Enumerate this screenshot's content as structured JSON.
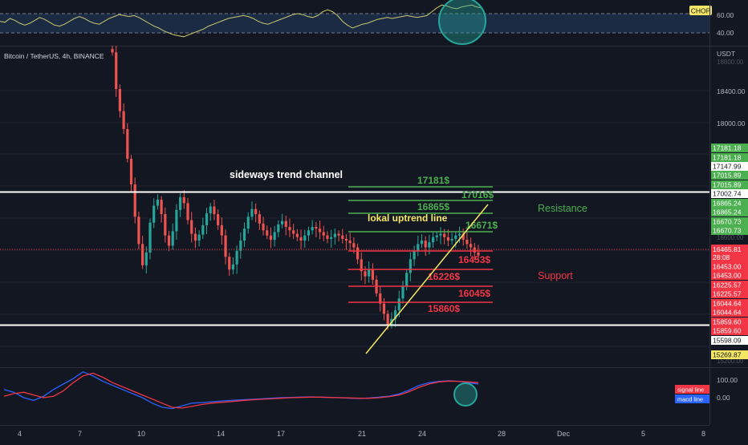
{
  "chop_panel": {
    "badge": "CHOP",
    "levels": [
      {
        "value": "60.00"
      },
      {
        "value": "40.00"
      }
    ],
    "series": [
      52,
      51,
      55,
      53,
      50,
      48,
      50,
      53,
      56,
      54,
      51,
      48,
      47,
      49,
      52,
      55,
      57,
      55,
      52,
      50,
      49,
      52,
      55,
      57,
      59,
      58,
      57,
      58,
      56,
      53,
      50,
      47,
      45,
      42,
      40,
      38,
      37,
      36,
      38,
      40,
      42,
      44,
      47,
      49,
      51,
      53,
      55,
      56,
      57,
      58,
      57,
      55,
      52,
      50,
      49,
      51,
      53,
      55,
      57,
      59,
      60,
      59,
      57,
      56,
      58,
      62,
      64,
      62,
      58,
      52,
      48,
      45,
      47,
      49,
      50,
      52,
      54,
      55,
      56,
      55,
      56,
      57,
      58,
      57,
      56,
      57,
      58,
      62,
      66,
      69,
      68,
      66,
      65,
      67,
      68,
      69,
      67,
      66
    ]
  },
  "symbol_info": "Bitcoin / TetherUS, 4h, BINANCE",
  "currency": "USDT",
  "price_axis": {
    "ticks": [
      "18400.00",
      "18000.00"
    ],
    "faded_ticks": [
      "18800.00",
      "16600.00",
      "15200.00"
    ],
    "resistance_labels": [
      "17181.18",
      "17181.18",
      "17147.99",
      "17015.89",
      "17015.89"
    ],
    "highlight_label": "17002.74",
    "resistance_labels_2": [
      "16865.24",
      "16865.24",
      "16670.73",
      "16670.73"
    ],
    "current_price": "16465.81",
    "countdown": "28:08",
    "support_labels": [
      "16453.00",
      "16453.00",
      "16225.57",
      "16225.57",
      "16044.64",
      "16044.64",
      "15859.60",
      "15859.60"
    ],
    "low_label": "15598.09",
    "yellow_label": "15269.87"
  },
  "annotations": {
    "channel_label": "sideways trend channel",
    "uptrend_label": "lokal uptrend line",
    "resistance_title": "Resistance",
    "support_title": "Support",
    "resistance_levels": [
      "17181$",
      "17016$",
      "16865$",
      "16671$"
    ],
    "support_levels": [
      "16453$",
      "16226$",
      "16045$",
      "15860$"
    ]
  },
  "macd_panel": {
    "ticks": [
      "100.00",
      "0.00"
    ],
    "signal_label": "signal line",
    "macd_label": "macd line",
    "macd": [
      30,
      20,
      0,
      -10,
      5,
      30,
      50,
      70,
      95,
      80,
      60,
      45,
      30,
      15,
      0,
      -20,
      -35,
      -40,
      -30,
      -20,
      -18,
      -15,
      -12,
      -10,
      -8,
      -6,
      -4,
      -2,
      0,
      1,
      2,
      3,
      2,
      1,
      0,
      -2,
      -3,
      -1,
      2,
      6,
      14,
      28,
      45,
      55,
      60,
      62,
      60,
      55,
      50
    ],
    "signal": [
      5,
      15,
      20,
      10,
      0,
      5,
      25,
      55,
      80,
      90,
      75,
      55,
      40,
      25,
      10,
      -5,
      -20,
      -35,
      -38,
      -32,
      -25,
      -20,
      -17,
      -14,
      -11,
      -8,
      -6,
      -4,
      -2,
      0,
      1,
      2,
      2,
      1,
      0,
      -1,
      -2,
      -2,
      0,
      4,
      10,
      22,
      38,
      50,
      58,
      61,
      60,
      58,
      55
    ]
  },
  "x_axis": {
    "labels": [
      "4",
      "7",
      "10",
      "14",
      "17",
      "21",
      "24",
      "28",
      "Dec",
      "5",
      "8"
    ]
  },
  "colors": {
    "bg": "#131722",
    "up": "#26a69a",
    "down": "#ef5350",
    "resistance": "#4caf50",
    "support": "#f23645",
    "yellow": "#f5e663",
    "white": "#ffffff",
    "macd": "#2962ff",
    "signal": "#f23645"
  },
  "chart_data": {
    "type": "candlestick",
    "title": "Bitcoin / TetherUS, 4h, BINANCE",
    "ylabel": "USDT",
    "ylim": [
      15200,
      18900
    ],
    "x_ticks": [
      "4",
      "7",
      "10",
      "14",
      "17",
      "21",
      "24",
      "28",
      "Dec",
      "5",
      "8"
    ],
    "horizontal_levels": {
      "channel_top": 17002.74,
      "channel_bottom": 15598.09,
      "resistance": [
        17181,
        17016,
        16865,
        16671
      ],
      "support": [
        16453,
        16226,
        16045,
        15860
      ]
    },
    "uptrend_line": {
      "from": 15269.87,
      "to": 17040
    },
    "closes": [
      18850,
      18420,
      18160,
      17950,
      17600,
      17300,
      16920,
      16600,
      16350,
      16500,
      16850,
      17050,
      17120,
      16950,
      16700,
      16580,
      16750,
      17000,
      17150,
      17080,
      16880,
      16720,
      16640,
      16710,
      16820,
      16960,
      17040,
      16950,
      16820,
      16700,
      16450,
      16300,
      16360,
      16520,
      16640,
      16780,
      16920,
      17010,
      16950,
      16840,
      16760,
      16700,
      16650,
      16740,
      16830,
      16870,
      16800,
      16760,
      16720,
      16680,
      16640,
      16700,
      16760,
      16800,
      16780,
      16740,
      16700,
      16660,
      16680,
      16720,
      16700,
      16660,
      16640,
      16610,
      16560,
      16420,
      16280,
      16220,
      16300,
      16180,
      16020,
      15900,
      15780,
      15650,
      15720,
      15820,
      15960,
      16100,
      16260,
      16420,
      16520,
      16600,
      16640,
      16560,
      16620,
      16680,
      16700,
      16720,
      16680,
      16640,
      16660,
      16700,
      16720,
      16650,
      16600,
      16560,
      16500,
      16465
    ]
  }
}
